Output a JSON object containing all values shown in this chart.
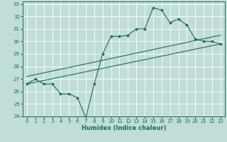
{
  "title": "",
  "xlabel": "Humidex (Indice chaleur)",
  "ylabel": "",
  "bg_color": "#c0ddd8",
  "grid_color": "#ffffff",
  "line_color": "#1a6b5a",
  "xlim": [
    -0.5,
    23.5
  ],
  "ylim": [
    24,
    33.2
  ],
  "xticks": [
    0,
    1,
    2,
    3,
    4,
    5,
    6,
    7,
    8,
    9,
    10,
    11,
    12,
    13,
    14,
    15,
    16,
    17,
    18,
    19,
    20,
    21,
    22,
    23
  ],
  "yticks": [
    24,
    25,
    26,
    27,
    28,
    29,
    30,
    31,
    32,
    33
  ],
  "main_x": [
    0,
    1,
    2,
    3,
    4,
    5,
    6,
    7,
    8,
    9,
    10,
    11,
    12,
    13,
    14,
    15,
    16,
    17,
    18,
    19,
    20,
    21,
    22,
    23
  ],
  "main_y": [
    26.6,
    27.0,
    26.6,
    26.6,
    25.8,
    25.8,
    25.5,
    23.9,
    26.6,
    29.0,
    30.4,
    30.4,
    30.5,
    31.0,
    31.0,
    32.7,
    32.5,
    31.5,
    31.8,
    31.3,
    30.2,
    30.0,
    30.0,
    29.8
  ],
  "trend1_x": [
    0,
    23
  ],
  "trend1_y": [
    26.6,
    29.8
  ],
  "trend2_x": [
    0,
    23
  ],
  "trend2_y": [
    27.2,
    30.5
  ]
}
